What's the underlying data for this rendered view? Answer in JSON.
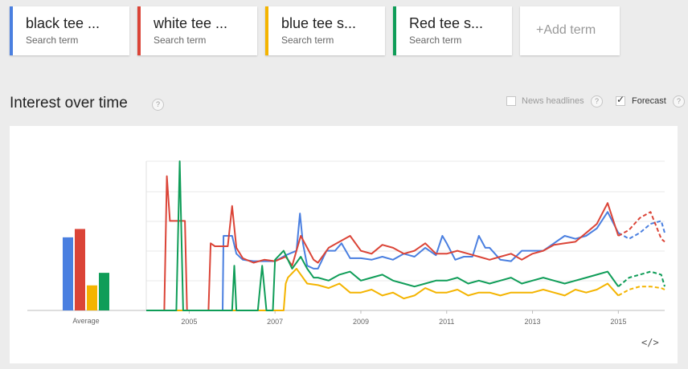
{
  "terms": [
    {
      "name": "black tee ...",
      "sub": "Search term",
      "color": "#4a7fe0"
    },
    {
      "name": "white tee ...",
      "sub": "Search term",
      "color": "#db4437"
    },
    {
      "name": "blue tee s...",
      "sub": "Search term",
      "color": "#f4b400"
    },
    {
      "name": "Red tee s...",
      "sub": "Search term",
      "color": "#0f9d58"
    }
  ],
  "add_term_label": "+Add term",
  "section_title": "Interest over time",
  "help_glyph": "?",
  "options": {
    "news_headlines": {
      "label": "News headlines",
      "checked": false
    },
    "forecast": {
      "label": "Forecast",
      "checked": true,
      "check_glyph": "✓"
    }
  },
  "embed_label": "</>",
  "chart_data": {
    "type": "line",
    "average": {
      "label": "Average",
      "values": [
        35,
        39,
        12,
        18
      ],
      "colors": [
        "#4a7fe0",
        "#db4437",
        "#f4b400",
        "#0f9d58"
      ]
    },
    "x_ticks": [
      "2005",
      "2007",
      "2009",
      "2011",
      "2013",
      "2015"
    ],
    "ylim": [
      0,
      100
    ],
    "grid": true,
    "x_range": [
      2004.0,
      2016.08
    ],
    "forecast_from": 2015.0,
    "series": [
      {
        "name": "black tee ...",
        "color": "#4a7fe0",
        "points": [
          [
            2004.0,
            0
          ],
          [
            2005.5,
            0
          ],
          [
            2005.7,
            0
          ],
          [
            2005.78,
            0
          ],
          [
            2005.8,
            50
          ],
          [
            2005.9,
            50
          ],
          [
            2006.0,
            50
          ],
          [
            2006.1,
            38
          ],
          [
            2006.25,
            34
          ],
          [
            2006.5,
            33
          ],
          [
            2006.75,
            33
          ],
          [
            2007.0,
            33
          ],
          [
            2007.25,
            37
          ],
          [
            2007.5,
            40
          ],
          [
            2007.58,
            65
          ],
          [
            2007.65,
            45
          ],
          [
            2007.75,
            30
          ],
          [
            2007.9,
            28
          ],
          [
            2008.0,
            28
          ],
          [
            2008.2,
            40
          ],
          [
            2008.4,
            40
          ],
          [
            2008.55,
            45
          ],
          [
            2008.75,
            35
          ],
          [
            2009.0,
            35
          ],
          [
            2009.25,
            34
          ],
          [
            2009.5,
            36
          ],
          [
            2009.75,
            34
          ],
          [
            2010.0,
            38
          ],
          [
            2010.25,
            36
          ],
          [
            2010.5,
            42
          ],
          [
            2010.75,
            37
          ],
          [
            2010.9,
            50
          ],
          [
            2011.0,
            45
          ],
          [
            2011.2,
            34
          ],
          [
            2011.4,
            36
          ],
          [
            2011.6,
            36
          ],
          [
            2011.75,
            50
          ],
          [
            2011.9,
            42
          ],
          [
            2012.0,
            42
          ],
          [
            2012.25,
            34
          ],
          [
            2012.5,
            33
          ],
          [
            2012.75,
            40
          ],
          [
            2013.0,
            40
          ],
          [
            2013.25,
            40
          ],
          [
            2013.5,
            45
          ],
          [
            2013.75,
            50
          ],
          [
            2014.0,
            48
          ],
          [
            2014.25,
            50
          ],
          [
            2014.5,
            55
          ],
          [
            2014.75,
            66
          ],
          [
            2015.0,
            52
          ],
          [
            2015.25,
            48
          ],
          [
            2015.5,
            52
          ],
          [
            2015.75,
            58
          ],
          [
            2016.0,
            60
          ],
          [
            2016.08,
            52
          ]
        ]
      },
      {
        "name": "white tee ...",
        "color": "#db4437",
        "points": [
          [
            2004.0,
            0
          ],
          [
            2004.42,
            0
          ],
          [
            2004.48,
            90
          ],
          [
            2004.55,
            60
          ],
          [
            2004.6,
            60
          ],
          [
            2004.7,
            60
          ],
          [
            2004.8,
            60
          ],
          [
            2004.9,
            60
          ],
          [
            2004.95,
            0
          ],
          [
            2005.3,
            0
          ],
          [
            2005.45,
            0
          ],
          [
            2005.5,
            45
          ],
          [
            2005.6,
            43
          ],
          [
            2005.75,
            43
          ],
          [
            2005.9,
            43
          ],
          [
            2006.0,
            70
          ],
          [
            2006.1,
            42
          ],
          [
            2006.25,
            35
          ],
          [
            2006.5,
            32
          ],
          [
            2006.75,
            34
          ],
          [
            2007.0,
            33
          ],
          [
            2007.25,
            36
          ],
          [
            2007.4,
            30
          ],
          [
            2007.6,
            50
          ],
          [
            2007.75,
            42
          ],
          [
            2007.9,
            34
          ],
          [
            2008.0,
            32
          ],
          [
            2008.25,
            42
          ],
          [
            2008.5,
            46
          ],
          [
            2008.75,
            50
          ],
          [
            2009.0,
            40
          ],
          [
            2009.25,
            38
          ],
          [
            2009.5,
            44
          ],
          [
            2009.75,
            42
          ],
          [
            2010.0,
            38
          ],
          [
            2010.25,
            40
          ],
          [
            2010.5,
            45
          ],
          [
            2010.75,
            38
          ],
          [
            2011.0,
            38
          ],
          [
            2011.25,
            40
          ],
          [
            2011.5,
            38
          ],
          [
            2011.75,
            36
          ],
          [
            2012.0,
            34
          ],
          [
            2012.25,
            36
          ],
          [
            2012.5,
            38
          ],
          [
            2012.75,
            34
          ],
          [
            2013.0,
            38
          ],
          [
            2013.25,
            40
          ],
          [
            2013.5,
            44
          ],
          [
            2013.75,
            45
          ],
          [
            2014.0,
            46
          ],
          [
            2014.25,
            52
          ],
          [
            2014.5,
            58
          ],
          [
            2014.75,
            72
          ],
          [
            2015.0,
            50
          ],
          [
            2015.25,
            54
          ],
          [
            2015.5,
            62
          ],
          [
            2015.75,
            66
          ],
          [
            2016.0,
            48
          ],
          [
            2016.08,
            46
          ]
        ]
      },
      {
        "name": "blue tee s...",
        "color": "#f4b400",
        "points": [
          [
            2004.0,
            0
          ],
          [
            2007.0,
            0
          ],
          [
            2007.2,
            0
          ],
          [
            2007.25,
            18
          ],
          [
            2007.3,
            22
          ],
          [
            2007.5,
            28
          ],
          [
            2007.75,
            18
          ],
          [
            2008.0,
            17
          ],
          [
            2008.25,
            15
          ],
          [
            2008.5,
            18
          ],
          [
            2008.75,
            12
          ],
          [
            2009.0,
            12
          ],
          [
            2009.25,
            14
          ],
          [
            2009.5,
            10
          ],
          [
            2009.75,
            12
          ],
          [
            2010.0,
            8
          ],
          [
            2010.25,
            10
          ],
          [
            2010.5,
            15
          ],
          [
            2010.75,
            12
          ],
          [
            2011.0,
            12
          ],
          [
            2011.25,
            14
          ],
          [
            2011.5,
            10
          ],
          [
            2011.75,
            12
          ],
          [
            2012.0,
            12
          ],
          [
            2012.25,
            10
          ],
          [
            2012.5,
            12
          ],
          [
            2012.75,
            12
          ],
          [
            2013.0,
            12
          ],
          [
            2013.25,
            14
          ],
          [
            2013.5,
            12
          ],
          [
            2013.75,
            10
          ],
          [
            2014.0,
            14
          ],
          [
            2014.25,
            12
          ],
          [
            2014.5,
            14
          ],
          [
            2014.75,
            18
          ],
          [
            2015.0,
            10
          ],
          [
            2015.25,
            14
          ],
          [
            2015.5,
            16
          ],
          [
            2015.75,
            16
          ],
          [
            2016.0,
            15
          ],
          [
            2016.08,
            14
          ]
        ]
      },
      {
        "name": "Red tee s...",
        "color": "#0f9d58",
        "points": [
          [
            2004.0,
            0
          ],
          [
            2004.7,
            0
          ],
          [
            2004.78,
            100
          ],
          [
            2004.86,
            0
          ],
          [
            2005.0,
            0
          ],
          [
            2005.7,
            0
          ],
          [
            2005.95,
            0
          ],
          [
            2006.0,
            0
          ],
          [
            2006.05,
            30
          ],
          [
            2006.1,
            0
          ],
          [
            2006.6,
            0
          ],
          [
            2006.7,
            30
          ],
          [
            2006.8,
            0
          ],
          [
            2006.95,
            0
          ],
          [
            2007.0,
            34
          ],
          [
            2007.2,
            40
          ],
          [
            2007.4,
            28
          ],
          [
            2007.6,
            36
          ],
          [
            2007.75,
            28
          ],
          [
            2007.9,
            22
          ],
          [
            2008.0,
            22
          ],
          [
            2008.25,
            20
          ],
          [
            2008.5,
            24
          ],
          [
            2008.75,
            26
          ],
          [
            2009.0,
            20
          ],
          [
            2009.25,
            22
          ],
          [
            2009.5,
            24
          ],
          [
            2009.75,
            20
          ],
          [
            2010.0,
            18
          ],
          [
            2010.25,
            16
          ],
          [
            2010.5,
            18
          ],
          [
            2010.75,
            20
          ],
          [
            2011.0,
            20
          ],
          [
            2011.25,
            22
          ],
          [
            2011.5,
            18
          ],
          [
            2011.75,
            20
          ],
          [
            2012.0,
            18
          ],
          [
            2012.25,
            20
          ],
          [
            2012.5,
            22
          ],
          [
            2012.75,
            18
          ],
          [
            2013.0,
            20
          ],
          [
            2013.25,
            22
          ],
          [
            2013.5,
            20
          ],
          [
            2013.75,
            18
          ],
          [
            2014.0,
            20
          ],
          [
            2014.25,
            22
          ],
          [
            2014.5,
            24
          ],
          [
            2014.75,
            26
          ],
          [
            2015.0,
            16
          ],
          [
            2015.25,
            22
          ],
          [
            2015.5,
            24
          ],
          [
            2015.75,
            26
          ],
          [
            2016.0,
            24
          ],
          [
            2016.08,
            16
          ]
        ]
      }
    ]
  }
}
